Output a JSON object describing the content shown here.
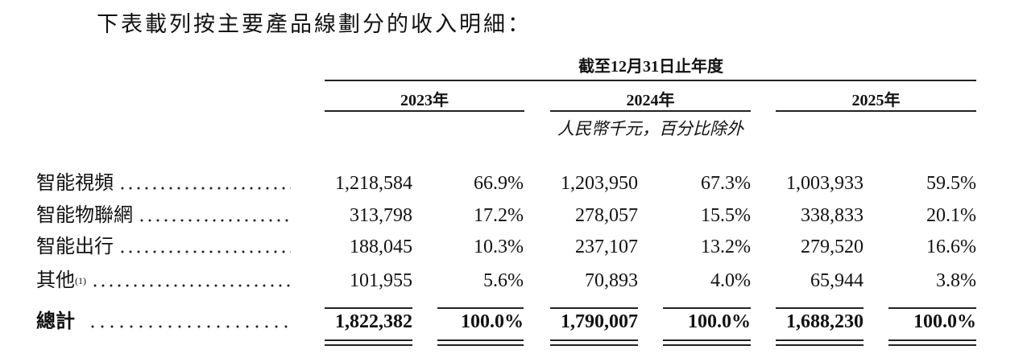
{
  "intro": "下表載列按主要產品線劃分的收入明細：",
  "table": {
    "period_header": "截至12月31日止年度",
    "years": [
      "2023年",
      "2024年",
      "2025年"
    ],
    "unit_note": "人民幣千元，百分比除外",
    "rows": [
      {
        "label": "智能視頻",
        "cells": [
          "1,218,584",
          "66.9%",
          "1,203,950",
          "67.3%",
          "1,003,933",
          "59.5%"
        ]
      },
      {
        "label": "智能物聯網",
        "cells": [
          "313,798",
          "17.2%",
          "278,057",
          "15.5%",
          "338,833",
          "20.1%"
        ]
      },
      {
        "label": "智能出行",
        "cells": [
          "188,045",
          "10.3%",
          "237,107",
          "13.2%",
          "279,520",
          "16.6%"
        ]
      },
      {
        "label": "其他",
        "note": "(1)",
        "cells": [
          "101,955",
          "5.6%",
          "70,893",
          "4.0%",
          "65,944",
          "3.8%"
        ]
      },
      {
        "label": "總計",
        "cells": [
          "1,822,382",
          "100.0%",
          "1,790,007",
          "100.0%",
          "1,688,230",
          "100.0%"
        ]
      }
    ]
  }
}
